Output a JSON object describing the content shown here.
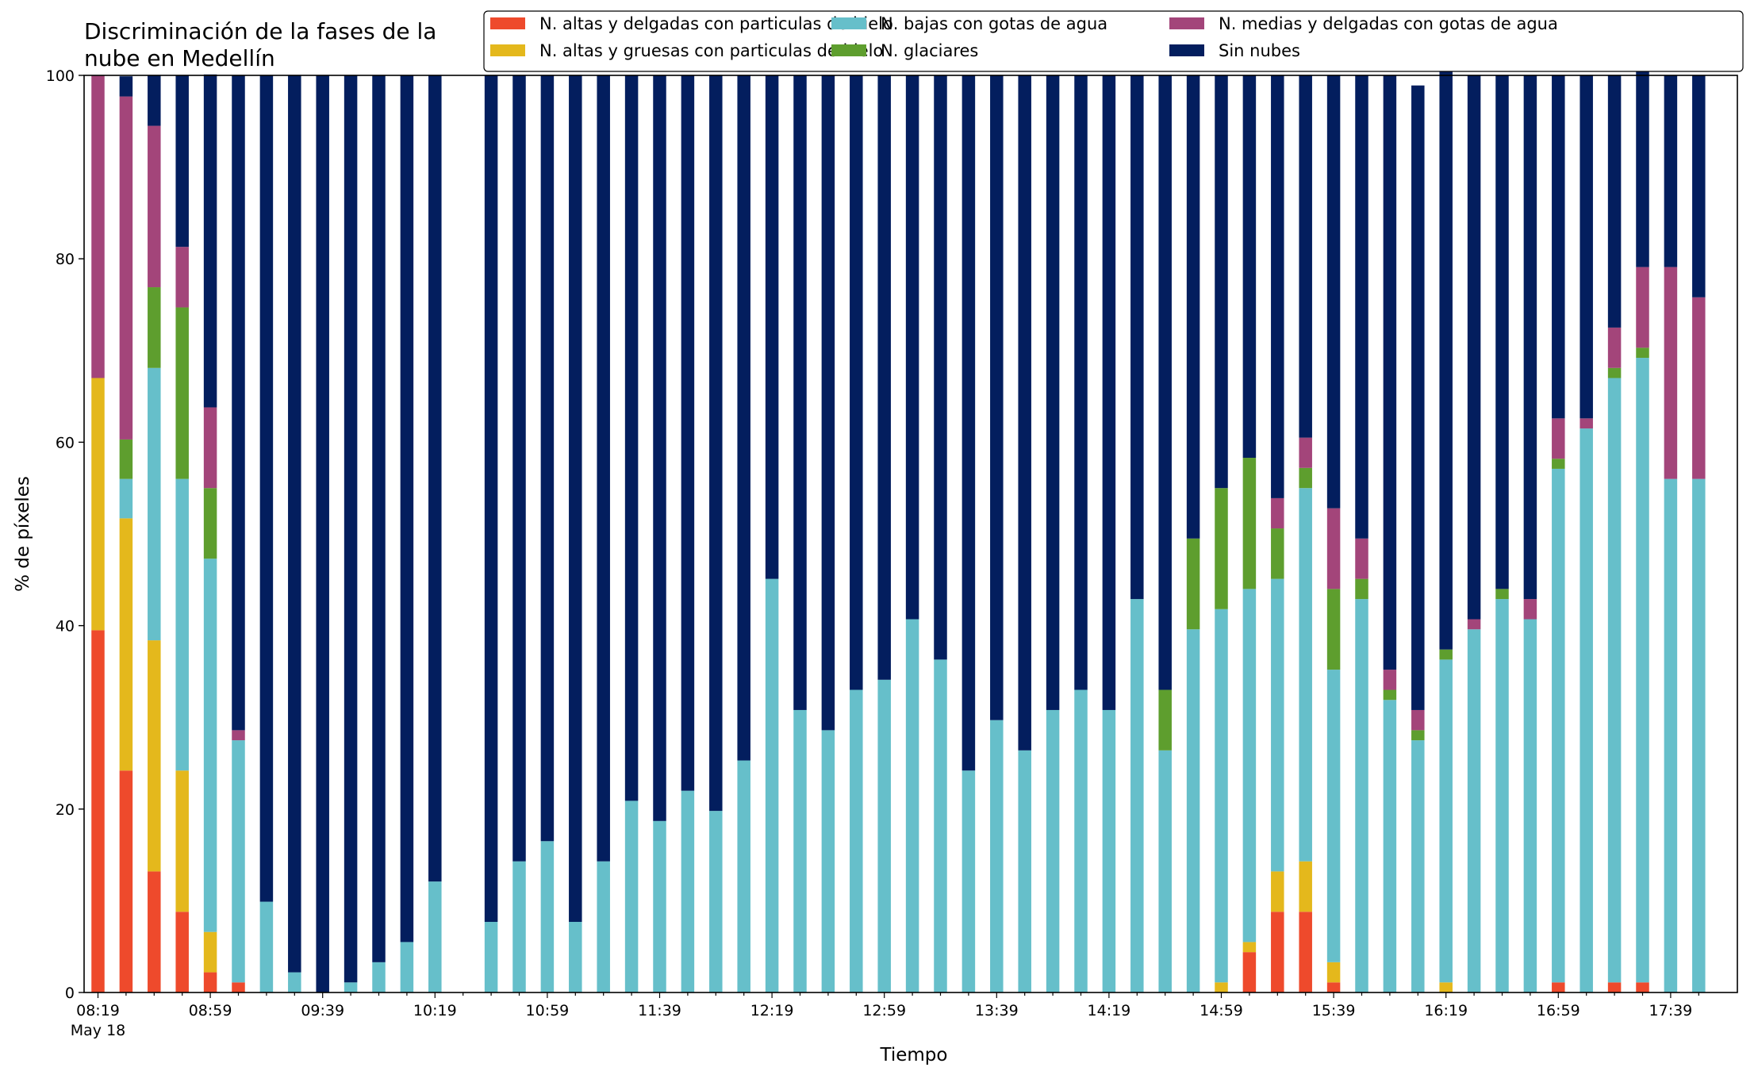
{
  "chart_data": {
    "type": "bar",
    "stacked": true,
    "title": [
      "Discriminación de la fases de la",
      "nube en Medellín"
    ],
    "xlabel": "Tiempo",
    "ylabel": "% de píxeles",
    "ylim": [
      0,
      100
    ],
    "yticks": [
      0,
      20,
      40,
      60,
      80,
      100
    ],
    "xticks": [
      {
        "index": 0,
        "label": "08:19",
        "sublabel": "May 18"
      },
      {
        "index": 4,
        "label": "08:59"
      },
      {
        "index": 8,
        "label": "09:39"
      },
      {
        "index": 12,
        "label": "10:19"
      },
      {
        "index": 16,
        "label": "10:59"
      },
      {
        "index": 20,
        "label": "11:39"
      },
      {
        "index": 24,
        "label": "12:19"
      },
      {
        "index": 28,
        "label": "12:59"
      },
      {
        "index": 32,
        "label": "13:39"
      },
      {
        "index": 36,
        "label": "14:19"
      },
      {
        "index": 40,
        "label": "14:59"
      },
      {
        "index": 44,
        "label": "15:39"
      },
      {
        "index": 48,
        "label": "16:19"
      },
      {
        "index": 52,
        "label": "16:59"
      },
      {
        "index": 56,
        "label": "17:39"
      }
    ],
    "legend_position": "top-right",
    "grid": false,
    "categories": [
      "08:19",
      "08:29",
      "08:39",
      "08:49",
      "08:59",
      "09:09",
      "09:19",
      "09:29",
      "09:39",
      "09:49",
      "09:59",
      "10:09",
      "10:19",
      "10:29",
      "10:39",
      "10:49",
      "10:59",
      "11:09",
      "11:19",
      "11:29",
      "11:39",
      "11:49",
      "11:59",
      "12:09",
      "12:19",
      "12:29",
      "12:39",
      "12:49",
      "12:59",
      "13:09",
      "13:19",
      "13:29",
      "13:39",
      "13:49",
      "13:59",
      "14:09",
      "14:19",
      "14:29",
      "14:39",
      "14:49",
      "14:59",
      "15:09",
      "15:19",
      "15:29",
      "15:39",
      "15:49",
      "15:59",
      "16:09",
      "16:19",
      "16:29",
      "16:39",
      "16:49",
      "16:59",
      "17:09",
      "17:19",
      "17:29",
      "17:39",
      "17:49"
    ],
    "series": [
      {
        "name": "N. altas y delgadas con particulas de hielo",
        "color": "#ee4a2c",
        "values": [
          39.5,
          24.2,
          13.2,
          8.8,
          2.2,
          1.1,
          0,
          0,
          0,
          0,
          0,
          0,
          0,
          null,
          0,
          0,
          0,
          0,
          0,
          0,
          0,
          0,
          0,
          0,
          0,
          0,
          0,
          0,
          0,
          0,
          0,
          0,
          0,
          0,
          0,
          0,
          0,
          0,
          0,
          0,
          0,
          4.4,
          8.8,
          8.8,
          1.1,
          0,
          0,
          0,
          0,
          0,
          0,
          0,
          1.1,
          0,
          1.1,
          1.1,
          0,
          0
        ]
      },
      {
        "name": "N. altas y gruesas con particulas de hielo",
        "color": "#e4b81c",
        "values": [
          27.5,
          27.5,
          25.2,
          15.4,
          4.4,
          0,
          0,
          0,
          0,
          0,
          0,
          0,
          0,
          null,
          0,
          0,
          0,
          0,
          0,
          0,
          0,
          0,
          0,
          0,
          0,
          0,
          0,
          0,
          0,
          0,
          0,
          0,
          0,
          0,
          0,
          0,
          0,
          0,
          0,
          0,
          1.1,
          1.1,
          4.4,
          5.5,
          2.2,
          0,
          0,
          0,
          1.1,
          0,
          0,
          0,
          0,
          0,
          0,
          0,
          0,
          0
        ]
      },
      {
        "name": "N. bajas con gotas de agua",
        "color": "#66bfca",
        "values": [
          0,
          4.3,
          29.7,
          31.8,
          40.7,
          26.4,
          9.9,
          2.2,
          0,
          1.1,
          3.3,
          5.5,
          12.1,
          null,
          7.7,
          14.3,
          16.5,
          7.7,
          14.3,
          20.9,
          18.7,
          22.0,
          19.8,
          25.3,
          45.1,
          30.8,
          28.6,
          33.0,
          34.1,
          40.7,
          36.3,
          24.2,
          29.7,
          26.4,
          30.8,
          33.0,
          30.8,
          42.9,
          26.4,
          39.6,
          40.7,
          38.5,
          31.9,
          40.7,
          31.9,
          42.9,
          31.9,
          27.5,
          35.2,
          39.6,
          42.9,
          40.7,
          56.0,
          61.5,
          65.9,
          68.1,
          56.0,
          56.0
        ]
      },
      {
        "name": "N. glaciares",
        "color": "#5e9e2e",
        "values": [
          0,
          4.3,
          8.8,
          18.7,
          7.7,
          0,
          0,
          0,
          0,
          0,
          0,
          0,
          0,
          null,
          0,
          0,
          0,
          0,
          0,
          0,
          0,
          0,
          0,
          0,
          0,
          0,
          0,
          0,
          0,
          0,
          0,
          0,
          0,
          0,
          0,
          0,
          0,
          0,
          6.6,
          9.9,
          13.2,
          14.3,
          5.5,
          2.2,
          8.8,
          2.2,
          1.1,
          1.1,
          1.1,
          0,
          1.1,
          0,
          1.1,
          0,
          1.1,
          1.1,
          0,
          0
        ]
      },
      {
        "name": "N. medias y delgadas con gotas de agua",
        "color": "#a3457a",
        "values": [
          33.0,
          37.4,
          17.6,
          6.6,
          8.8,
          1.1,
          0,
          0,
          0,
          0,
          0,
          0,
          0,
          null,
          0,
          0,
          0,
          0,
          0,
          0,
          0,
          0,
          0,
          0,
          0,
          0,
          0,
          0,
          0,
          0,
          0,
          0,
          0,
          0,
          0,
          0,
          0,
          0,
          0,
          0,
          0,
          0,
          3.3,
          3.3,
          8.8,
          4.4,
          2.2,
          2.2,
          0,
          1.1,
          0,
          2.2,
          4.4,
          1.1,
          4.4,
          8.8,
          23.1,
          19.8
        ]
      },
      {
        "name": "Sin nubes",
        "color": "#031e5e",
        "values": [
          0,
          2.2,
          5.5,
          18.7,
          36.3,
          71.4,
          90.1,
          97.8,
          100,
          98.9,
          96.7,
          94.5,
          87.9,
          null,
          92.3,
          85.7,
          83.5,
          92.3,
          85.7,
          79.1,
          81.3,
          78.0,
          80.2,
          74.7,
          54.9,
          69.2,
          71.4,
          67.0,
          65.9,
          59.3,
          63.7,
          75.8,
          70.3,
          73.6,
          69.2,
          67.0,
          69.2,
          57.1,
          67.0,
          50.5,
          45.0,
          41.7,
          46.1,
          39.5,
          47.2,
          50.5,
          64.8,
          68.1,
          63.7,
          59.3,
          56.0,
          57.1,
          37.4,
          37.4,
          27.5,
          22.0,
          20.9,
          24.2
        ]
      }
    ]
  }
}
